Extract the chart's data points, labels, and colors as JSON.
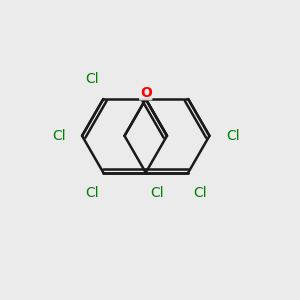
{
  "bg_color": "#ebebeb",
  "bond_color": "#1a1a1a",
  "bond_width": 1.8,
  "cl_color": "#008000",
  "o_color": "#ff0000",
  "font_size_cl": 10,
  "font_size_o": 10,
  "figsize": [
    3.0,
    3.0
  ],
  "dpi": 100,
  "xlim": [
    -2.8,
    4.2
  ],
  "ylim": [
    -3.2,
    2.8
  ]
}
